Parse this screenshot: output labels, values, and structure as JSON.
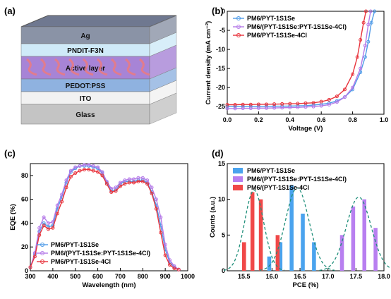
{
  "colors": {
    "blue": "#4f9be8",
    "purple": "#b57ae8",
    "red": "#e8333c",
    "fit": "#1f8f7a",
    "barBlue": "#4aa3ee",
    "barPurple": "#b87ff0",
    "barRed": "#f04848"
  },
  "panel_a": {
    "label": "(a)",
    "layers": [
      {
        "name": "Ag",
        "color": "#8a93a6"
      },
      {
        "name": "PNDIT-F3N",
        "color": "#cfeaf8"
      },
      {
        "name": "Active layer",
        "color": "#a784d6"
      },
      {
        "name": "PEDOT:PSS",
        "color": "#8fb2e0"
      },
      {
        "name": "ITO",
        "color": "#f2f2f2"
      },
      {
        "name": "Glass",
        "color": "#c4c4c4"
      }
    ]
  },
  "chart_data": [
    {
      "panel": "(b)",
      "type": "line",
      "xlabel": "Voltage (V)",
      "ylabel": "Current density (mA cm⁻²)",
      "xlim": [
        0.0,
        1.0
      ],
      "ylim": [
        -27,
        0
      ],
      "xticks": [
        "0.0",
        "0.2",
        "0.4",
        "0.6",
        "0.8",
        "1.0"
      ],
      "yticks": [
        "0",
        "-5",
        "-10",
        "-15",
        "-20",
        "-25"
      ],
      "legend_position": "top-left",
      "series": [
        {
          "name": "PM6/PYT-1S1Se",
          "color": "#4f9be8",
          "marker": "circle",
          "x": [
            0.0,
            0.05,
            0.1,
            0.15,
            0.2,
            0.25,
            0.3,
            0.35,
            0.4,
            0.45,
            0.5,
            0.55,
            0.6,
            0.65,
            0.7,
            0.75,
            0.8,
            0.85,
            0.88,
            0.9,
            0.92,
            0.94
          ],
          "y": [
            -25.0,
            -25.0,
            -25.0,
            -25.0,
            -24.95,
            -24.95,
            -24.9,
            -24.9,
            -24.85,
            -24.8,
            -24.75,
            -24.6,
            -24.4,
            -24.1,
            -23.5,
            -22.5,
            -20.5,
            -16.0,
            -12.0,
            -8.0,
            -3.0,
            0.0
          ]
        },
        {
          "name": "PM6/(PYT-1S1Se:PYT-1S1Se-4Cl)",
          "color": "#b57ae8",
          "marker": "circle",
          "x": [
            0.0,
            0.05,
            0.1,
            0.15,
            0.2,
            0.25,
            0.3,
            0.35,
            0.4,
            0.45,
            0.5,
            0.55,
            0.6,
            0.65,
            0.7,
            0.75,
            0.8,
            0.85,
            0.88,
            0.9,
            0.915
          ],
          "y": [
            -25.5,
            -25.5,
            -25.45,
            -25.45,
            -25.4,
            -25.4,
            -25.35,
            -25.3,
            -25.25,
            -25.2,
            -25.1,
            -25.0,
            -24.8,
            -24.5,
            -23.8,
            -22.5,
            -20.0,
            -15.0,
            -9.0,
            -3.5,
            0.0
          ]
        },
        {
          "name": "PM6/PYT-1S1Se-4Cl",
          "color": "#e8333c",
          "marker": "circle",
          "x": [
            0.0,
            0.05,
            0.1,
            0.15,
            0.2,
            0.25,
            0.3,
            0.35,
            0.4,
            0.45,
            0.5,
            0.55,
            0.6,
            0.65,
            0.7,
            0.75,
            0.8,
            0.83,
            0.85,
            0.87,
            0.885
          ],
          "y": [
            -24.5,
            -24.5,
            -24.45,
            -24.45,
            -24.4,
            -24.4,
            -24.35,
            -24.3,
            -24.25,
            -24.2,
            -24.1,
            -24.0,
            -23.7,
            -23.2,
            -22.3,
            -20.5,
            -16.5,
            -12.0,
            -7.5,
            -3.0,
            0.0
          ]
        }
      ]
    },
    {
      "panel": "(c)",
      "type": "line",
      "xlabel": "Wavelength (nm)",
      "ylabel": "EQE (%)",
      "xlim": [
        300,
        1000
      ],
      "ylim": [
        0,
        90
      ],
      "xticks": [
        "300",
        "400",
        "500",
        "600",
        "700",
        "800",
        "900",
        "1000"
      ],
      "yticks": [
        "0",
        "20",
        "40",
        "60",
        "80"
      ],
      "legend_position": "bottom-left",
      "series": [
        {
          "name": "PM6/PYT-1S1Se",
          "color": "#4f9be8",
          "marker": "circle",
          "x": [
            300,
            320,
            340,
            360,
            380,
            400,
            420,
            440,
            460,
            480,
            500,
            520,
            540,
            560,
            580,
            600,
            620,
            640,
            660,
            680,
            700,
            720,
            740,
            760,
            780,
            800,
            820,
            840,
            860,
            880,
            900,
            920,
            940,
            960
          ],
          "y": [
            3,
            14,
            33,
            40,
            37,
            38,
            52,
            62,
            74,
            83,
            86,
            88,
            88,
            88,
            87,
            86,
            82,
            74,
            67,
            68,
            73,
            75,
            75,
            75,
            76,
            76,
            74,
            66,
            55,
            38,
            18,
            7,
            3,
            1
          ]
        },
        {
          "name": "PM6/(PYT-1S1Se:PYT-1S1Se-4Cl)",
          "color": "#b57ae8",
          "marker": "circle",
          "x": [
            300,
            320,
            340,
            360,
            380,
            400,
            420,
            440,
            460,
            480,
            500,
            520,
            540,
            560,
            580,
            600,
            620,
            640,
            660,
            680,
            700,
            720,
            740,
            760,
            780,
            800,
            820,
            840,
            860,
            880,
            900,
            920,
            940,
            960
          ],
          "y": [
            3,
            15,
            36,
            45,
            40,
            41,
            55,
            64,
            76,
            84,
            87,
            88,
            89,
            89,
            88,
            87,
            83,
            75,
            69,
            70,
            74,
            76,
            77,
            77,
            78,
            78,
            76,
            70,
            60,
            45,
            22,
            9,
            4,
            1
          ]
        },
        {
          "name": "PM6/PYT-1S1Se-4Cl",
          "color": "#e8333c",
          "marker": "circle",
          "x": [
            300,
            320,
            340,
            360,
            380,
            400,
            420,
            440,
            460,
            480,
            500,
            520,
            540,
            560,
            580,
            600,
            620,
            640,
            660,
            680,
            700,
            720,
            740,
            760,
            780,
            800,
            820,
            840,
            860,
            880,
            900,
            920,
            940,
            960
          ],
          "y": [
            3,
            12,
            30,
            38,
            35,
            36,
            48,
            58,
            70,
            79,
            82,
            84,
            85,
            85,
            84,
            83,
            80,
            73,
            66,
            67,
            71,
            73,
            74,
            74,
            75,
            75,
            73,
            65,
            52,
            32,
            13,
            5,
            2,
            1
          ]
        }
      ]
    },
    {
      "panel": "(d)",
      "type": "bar",
      "xlabel": "PCE (%)",
      "ylabel": "Counts (a.u.)",
      "xlim": [
        15.2,
        18.0
      ],
      "ylim": [
        0,
        15
      ],
      "xticks": [
        "15.5",
        "16.0",
        "16.5",
        "17.0",
        "17.5",
        "18.0"
      ],
      "yticks": [
        "0",
        "5",
        "10",
        "15"
      ],
      "legend_position": "top-left",
      "series": [
        {
          "name": "PM6/PYT-1S1Se",
          "color": "#4aa3ee",
          "x": [
            15.95,
            16.15,
            16.35,
            16.55,
            16.75
          ],
          "values": [
            2,
            4,
            12,
            8,
            4
          ]
        },
        {
          "name": "PM6/(PYT-1S1Se:PYT-1S1Se-4Cl)",
          "color": "#b87ff0",
          "x": [
            17.25,
            17.45,
            17.65,
            17.85
          ],
          "values": [
            5,
            9,
            10,
            6
          ]
        },
        {
          "name": "PM6/(PYT-1S1Se-4Cl",
          "color": "#f04848",
          "x": [
            15.5,
            15.65,
            15.8,
            16.1
          ],
          "values": [
            4,
            11,
            10,
            5
          ]
        }
      ],
      "fits": [
        {
          "mean": 15.68,
          "sigma": 0.17,
          "amp": 11.3
        },
        {
          "mean": 16.45,
          "sigma": 0.21,
          "amp": 11.6
        },
        {
          "mean": 17.55,
          "sigma": 0.22,
          "amp": 10.3
        }
      ]
    }
  ]
}
